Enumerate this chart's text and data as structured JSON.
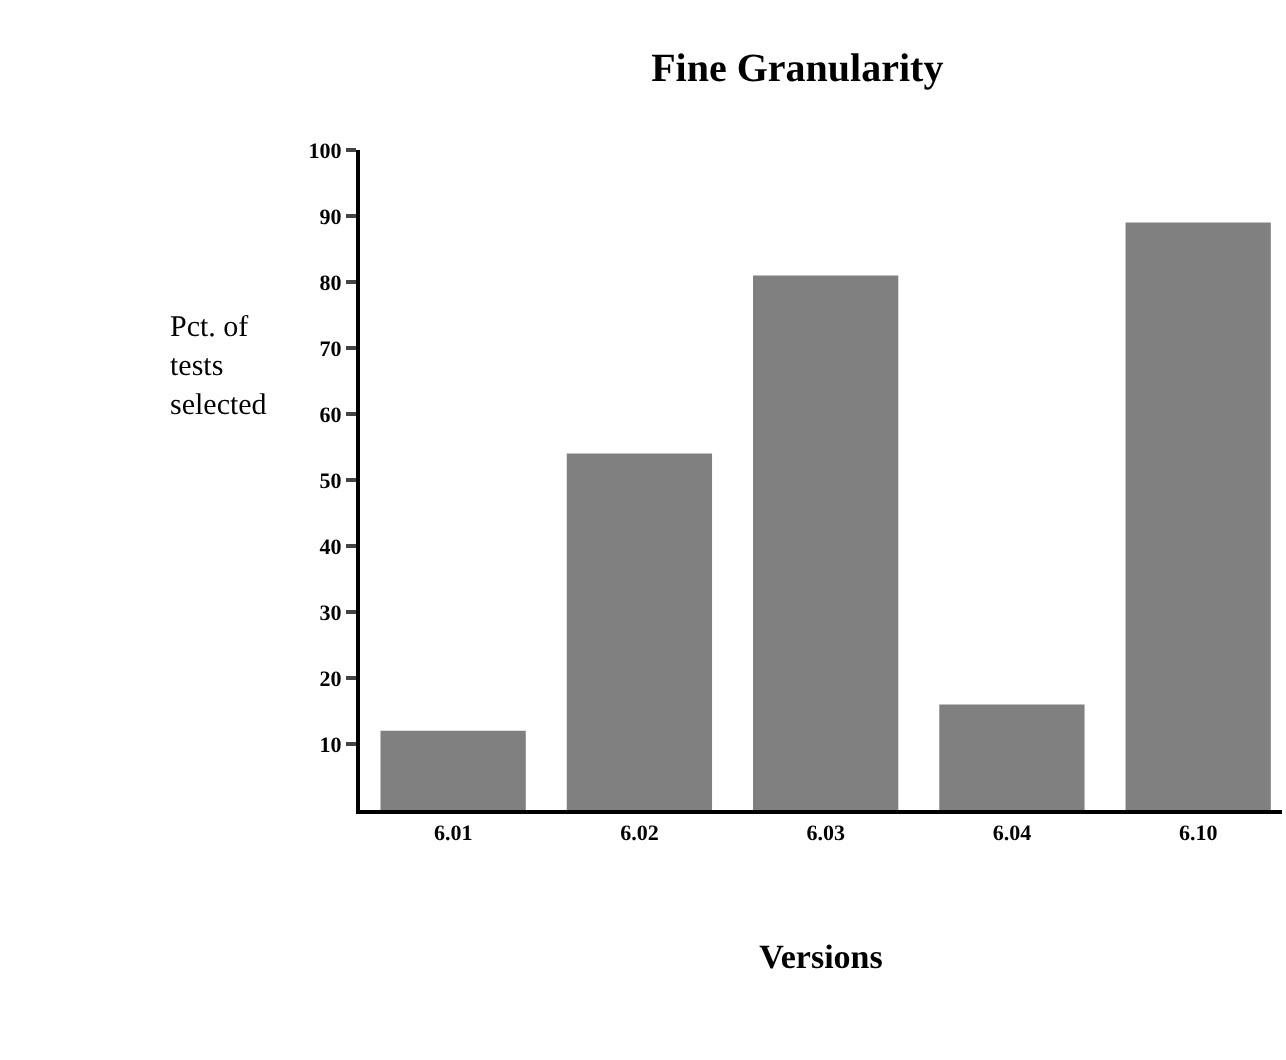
{
  "chart_data": {
    "type": "bar",
    "title": "Fine Granularity",
    "xlabel": "Versions",
    "ylabel": "Pct. of\ntests\nselected",
    "categories": [
      "6.01",
      "6.02",
      "6.03",
      "6.04",
      "6.10"
    ],
    "values": [
      12,
      54,
      81,
      16,
      89
    ],
    "color": "#808080",
    "ylim": [
      0,
      100
    ],
    "yticks": [
      10,
      20,
      30,
      40,
      50,
      60,
      70,
      80,
      90,
      100
    ],
    "grid": false
  }
}
